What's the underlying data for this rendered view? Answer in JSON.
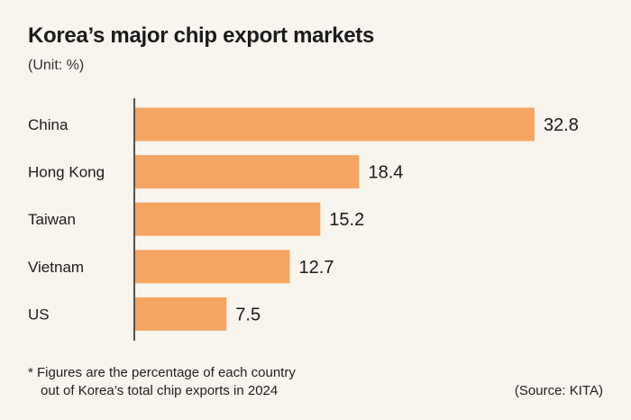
{
  "title": "Korea’s major chip export markets",
  "subtitle": "(Unit: %)",
  "footnote": {
    "line1": "* Figures are the percentage of each country",
    "line2": "out of Korea’s total chip exports in 2024"
  },
  "source": "(Source: KITA)",
  "colors": {
    "bar": "#f5a462",
    "axis": "#1c1c1c",
    "text": "#1c1c1c"
  },
  "chart_data": {
    "type": "bar",
    "orientation": "horizontal",
    "title": "Korea’s major chip export markets",
    "unit": "%",
    "categories": [
      "China",
      "Hong Kong",
      "Taiwan",
      "Vietnam",
      "US"
    ],
    "values": [
      32.8,
      18.4,
      15.2,
      12.7,
      7.5
    ],
    "value_labels": [
      "32.8",
      "18.4",
      "15.2",
      "12.7",
      "7.5"
    ],
    "xlim": [
      0,
      32.8
    ],
    "grid": false,
    "legend": "none"
  }
}
